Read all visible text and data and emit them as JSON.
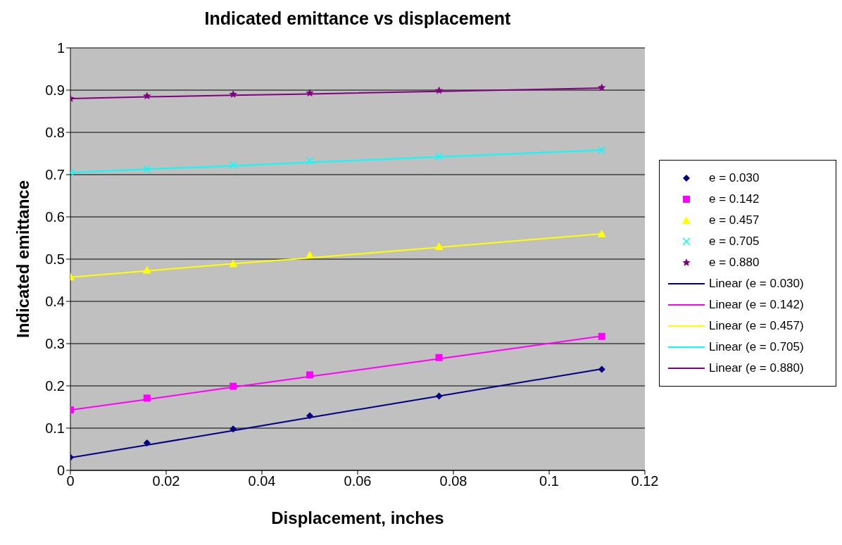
{
  "chart_data": {
    "type": "scatter",
    "title": "Indicated emittance vs displacement",
    "xlabel": "Displacement, inches",
    "ylabel": "Indicated emittance",
    "xlim": [
      0,
      0.12
    ],
    "xticks": [
      0,
      0.02,
      0.04,
      0.06,
      0.08,
      0.1,
      0.12
    ],
    "ylim": [
      0,
      1
    ],
    "yticks": [
      0,
      0.1,
      0.2,
      0.3,
      0.4,
      0.5,
      0.6,
      0.7,
      0.8,
      0.9,
      1
    ],
    "grid": "y",
    "legend": "right",
    "x": [
      0,
      0.016,
      0.034,
      0.05,
      0.077,
      0.111
    ],
    "series": [
      {
        "name": "e = 0.030",
        "marker": "diamond",
        "color": "#000080",
        "values": [
          0.031,
          0.065,
          0.098,
          0.129,
          0.176,
          0.239
        ]
      },
      {
        "name": "e = 0.142",
        "marker": "square",
        "color": "#ff00ff",
        "values": [
          0.143,
          0.171,
          0.199,
          0.226,
          0.267,
          0.317
        ]
      },
      {
        "name": "e = 0.457",
        "marker": "triangle",
        "color": "#ffff00",
        "values": [
          0.458,
          0.474,
          0.489,
          0.51,
          0.53,
          0.56
        ]
      },
      {
        "name": "e = 0.705",
        "marker": "cross",
        "color": "#00ffff",
        "values": [
          0.705,
          0.713,
          0.723,
          0.733,
          0.743,
          0.758
        ]
      },
      {
        "name": "e = 0.880",
        "marker": "star",
        "color": "#800080",
        "values": [
          0.88,
          0.886,
          0.89,
          0.893,
          0.899,
          0.906
        ]
      },
      {
        "name": "Linear (e = 0.030)",
        "type": "line",
        "color": "#000080",
        "values": [
          0.03,
          0.06,
          0.094,
          0.125,
          0.176,
          0.24
        ]
      },
      {
        "name": "Linear (e = 0.142)",
        "type": "line",
        "color": "#ff00ff",
        "values": [
          0.143,
          0.168,
          0.197,
          0.222,
          0.264,
          0.318
        ]
      },
      {
        "name": "Linear (e = 0.457)",
        "type": "line",
        "color": "#ffff00",
        "values": [
          0.457,
          0.472,
          0.489,
          0.503,
          0.528,
          0.56
        ]
      },
      {
        "name": "Linear (e = 0.705)",
        "type": "line",
        "color": "#00ffff",
        "values": [
          0.705,
          0.713,
          0.721,
          0.729,
          0.742,
          0.758
        ]
      },
      {
        "name": "Linear (e = 0.880)",
        "type": "line",
        "color": "#800080",
        "values": [
          0.88,
          0.884,
          0.888,
          0.891,
          0.897,
          0.905
        ]
      }
    ]
  }
}
